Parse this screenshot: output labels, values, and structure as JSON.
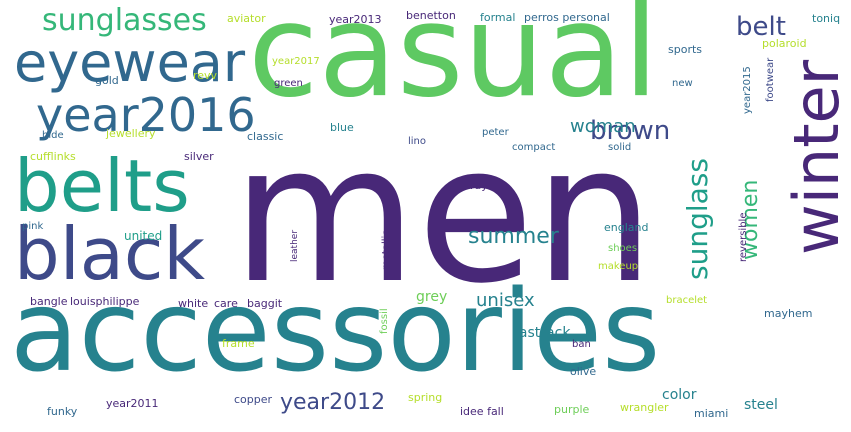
{
  "words": [
    {
      "text": "men",
      "color": "#482878",
      "vertical": false
    },
    {
      "text": "casual",
      "color": "#5ec962",
      "vertical": false
    },
    {
      "text": "accessories",
      "color": "#26828e",
      "vertical": false
    },
    {
      "text": "black",
      "color": "#3e4a89",
      "vertical": false
    },
    {
      "text": "belts",
      "color": "#1f9e89",
      "vertical": false
    },
    {
      "text": "eyewear",
      "color": "#31688e",
      "vertical": false
    },
    {
      "text": "winter",
      "color": "#482878",
      "vertical": true
    },
    {
      "text": "year2016",
      "color": "#31688e",
      "vertical": false
    },
    {
      "text": "sunglasses",
      "color": "#35b779",
      "vertical": false
    },
    {
      "text": "brown",
      "color": "#3e4a89",
      "vertical": false
    },
    {
      "text": "belt",
      "color": "#3e4a89",
      "vertical": false
    },
    {
      "text": "sunglass",
      "color": "#1f9e89",
      "vertical": true
    },
    {
      "text": "woman",
      "color": "#26828e",
      "vertical": false
    },
    {
      "text": "women",
      "color": "#35b779",
      "vertical": true
    },
    {
      "text": "summer",
      "color": "#26828e",
      "vertical": false
    },
    {
      "text": "year2012",
      "color": "#3e4a89",
      "vertical": false
    },
    {
      "text": "unisex",
      "color": "#26828e",
      "vertical": false
    },
    {
      "text": "grey",
      "color": "#6ece58",
      "vertical": false
    },
    {
      "text": "fastrack",
      "color": "#26828e",
      "vertical": false
    },
    {
      "text": "color",
      "color": "#26828e",
      "vertical": false
    },
    {
      "text": "steel",
      "color": "#26828e",
      "vertical": false
    },
    {
      "text": "aviator",
      "color": "#b5de2b",
      "vertical": false
    },
    {
      "text": "year2013",
      "color": "#482878",
      "vertical": false
    },
    {
      "text": "benetton",
      "color": "#482878",
      "vertical": false
    },
    {
      "text": "formal",
      "color": "#26828e",
      "vertical": false
    },
    {
      "text": "perros personal",
      "color": "#31688e",
      "vertical": false
    },
    {
      "text": "toniq",
      "color": "#26828e",
      "vertical": false
    },
    {
      "text": "sports",
      "color": "#31688e",
      "vertical": false
    },
    {
      "text": "polaroid",
      "color": "#b5de2b",
      "vertical": false
    },
    {
      "text": "year2017",
      "color": "#b5de2b",
      "vertical": false
    },
    {
      "text": "gold",
      "color": "#31688e",
      "vertical": false
    },
    {
      "text": "revv",
      "color": "#b5de2b",
      "vertical": false
    },
    {
      "text": "green",
      "color": "#482878",
      "vertical": false
    },
    {
      "text": "new",
      "color": "#31688e",
      "vertical": false
    },
    {
      "text": "year2015",
      "color": "#31688e",
      "vertical": true
    },
    {
      "text": "footwear",
      "color": "#3e4a89",
      "vertical": true
    },
    {
      "text": "hide",
      "color": "#31688e",
      "vertical": false
    },
    {
      "text": "jewellery",
      "color": "#b5de2b",
      "vertical": false
    },
    {
      "text": "classic",
      "color": "#31688e",
      "vertical": false
    },
    {
      "text": "blue",
      "color": "#26828e",
      "vertical": false
    },
    {
      "text": "lino",
      "color": "#3e4a89",
      "vertical": false
    },
    {
      "text": "peter",
      "color": "#31688e",
      "vertical": false
    },
    {
      "text": "compact",
      "color": "#31688e",
      "vertical": false
    },
    {
      "text": "solid",
      "color": "#31688e",
      "vertical": false
    },
    {
      "text": "cufflinks",
      "color": "#b5de2b",
      "vertical": false
    },
    {
      "text": "silver",
      "color": "#482878",
      "vertical": false
    },
    {
      "text": "ray",
      "color": "#482878",
      "vertical": false
    },
    {
      "text": "pink",
      "color": "#31688e",
      "vertical": false
    },
    {
      "text": "united",
      "color": "#1f9e89",
      "vertical": false
    },
    {
      "text": "england",
      "color": "#26828e",
      "vertical": false
    },
    {
      "text": "reversible",
      "color": "#482878",
      "vertical": true
    },
    {
      "text": "shoes",
      "color": "#6ece58",
      "vertical": false
    },
    {
      "text": "makeup",
      "color": "#b5de2b",
      "vertical": false
    },
    {
      "text": "leather",
      "color": "#482878",
      "vertical": true
    },
    {
      "text": "metallic",
      "color": "#482878",
      "vertical": true
    },
    {
      "text": "bangle",
      "color": "#482878",
      "vertical": false
    },
    {
      "text": "louisphilippe",
      "color": "#482878",
      "vertical": false
    },
    {
      "text": "white",
      "color": "#482878",
      "vertical": false
    },
    {
      "text": "care",
      "color": "#482878",
      "vertical": false
    },
    {
      "text": "baggit",
      "color": "#482878",
      "vertical": false
    },
    {
      "text": "mayhem",
      "color": "#31688e",
      "vertical": false
    },
    {
      "text": "bracelet",
      "color": "#b5de2b",
      "vertical": false
    },
    {
      "text": "frame",
      "color": "#b5de2b",
      "vertical": false
    },
    {
      "text": "fossil",
      "color": "#6ece58",
      "vertical": true
    },
    {
      "text": "ban",
      "color": "#482878",
      "vertical": false
    },
    {
      "text": "olive",
      "color": "#31688e",
      "vertical": false
    },
    {
      "text": "copper",
      "color": "#3e4a89",
      "vertical": false
    },
    {
      "text": "year2011",
      "color": "#482878",
      "vertical": false
    },
    {
      "text": "funky",
      "color": "#31688e",
      "vertical": false
    },
    {
      "text": "spring",
      "color": "#b5de2b",
      "vertical": false
    },
    {
      "text": "idee fall",
      "color": "#482878",
      "vertical": false
    },
    {
      "text": "purple",
      "color": "#6ece58",
      "vertical": false
    },
    {
      "text": "wrangler",
      "color": "#b5de2b",
      "vertical": false
    },
    {
      "text": "miami",
      "color": "#31688e",
      "vertical": false
    }
  ]
}
